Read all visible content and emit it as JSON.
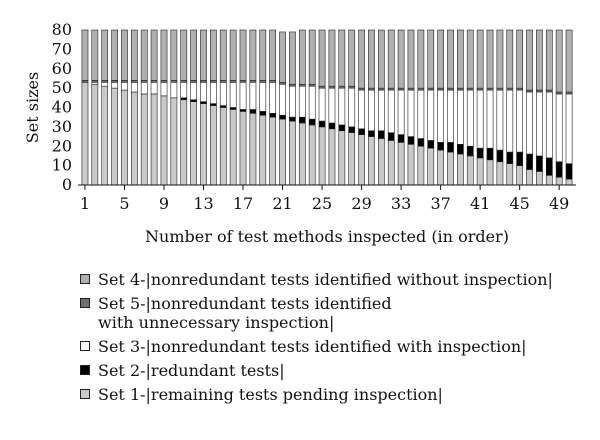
{
  "chart_data": {
    "type": "bar",
    "stacked": true,
    "xlabel": "Number of test methods inspected (in order)",
    "ylabel": "Set sizes",
    "ylim": [
      0,
      80
    ],
    "yticks": [
      0,
      10,
      20,
      30,
      40,
      50,
      60,
      70,
      80
    ],
    "xtick_labels": [
      "1",
      "5",
      "9",
      "13",
      "17",
      "21",
      "25",
      "29",
      "33",
      "37",
      "41",
      "45",
      "49"
    ],
    "categories": [
      1,
      2,
      3,
      4,
      5,
      6,
      7,
      8,
      9,
      10,
      11,
      12,
      13,
      14,
      15,
      16,
      17,
      18,
      19,
      20,
      21,
      22,
      23,
      24,
      25,
      26,
      27,
      28,
      29,
      30,
      31,
      32,
      33,
      34,
      35,
      36,
      37,
      38,
      39,
      40,
      41,
      42,
      43,
      44,
      45,
      46,
      47,
      48,
      49,
      50
    ],
    "series": [
      {
        "name": "Set 1-|remaining tests pending inspection|",
        "key": "set1",
        "values": [
          53,
          52,
          51,
          50,
          49,
          48,
          47,
          47,
          46,
          45,
          44,
          43,
          42,
          41,
          40,
          39,
          38,
          37,
          36,
          35,
          34,
          33,
          32,
          31,
          30,
          29,
          28,
          27,
          26,
          25,
          24,
          23,
          22,
          21,
          20,
          19,
          18,
          17,
          16,
          15,
          14,
          13,
          12,
          11,
          10,
          8,
          7,
          5,
          4,
          3
        ]
      },
      {
        "name": "Set 2-|redundant tests|",
        "key": "set2",
        "values": [
          0,
          0,
          0,
          0,
          0,
          0,
          0,
          0,
          0,
          0,
          1,
          1,
          1,
          1,
          1,
          1,
          1,
          2,
          2,
          2,
          2,
          2,
          3,
          3,
          3,
          3,
          3,
          3,
          3,
          3,
          4,
          4,
          4,
          4,
          4,
          4,
          4,
          5,
          5,
          5,
          5,
          6,
          6,
          6,
          7,
          8,
          8,
          9,
          8,
          8
        ]
      },
      {
        "name": "Set 3-|nonredundant tests identified with inspection|",
        "key": "set3",
        "values": [
          0,
          1,
          2,
          3,
          4,
          5,
          6,
          6,
          7,
          8,
          8,
          9,
          10,
          11,
          12,
          13,
          14,
          14,
          15,
          16,
          16,
          16,
          16,
          17,
          17,
          18,
          19,
          20,
          20,
          21,
          21,
          22,
          23,
          24,
          25,
          26,
          27,
          27,
          28,
          29,
          30,
          30,
          31,
          32,
          32,
          32,
          33,
          34,
          35,
          36
        ]
      },
      {
        "name": "Set 5-|nonredundant tests identified\nwith unnecessary inspection|",
        "key": "set5",
        "values": [
          1,
          1,
          1,
          1,
          1,
          1,
          1,
          1,
          1,
          1,
          1,
          1,
          1,
          1,
          1,
          1,
          1,
          1,
          1,
          1,
          1,
          1,
          1,
          1,
          1,
          1,
          1,
          1,
          1,
          1,
          1,
          1,
          1,
          1,
          1,
          1,
          1,
          1,
          1,
          1,
          1,
          1,
          1,
          1,
          1,
          1,
          1,
          1,
          1,
          1
        ]
      },
      {
        "name": "Set 4-|nonredundant tests identified without inspection|",
        "key": "set4",
        "values": [
          26,
          26,
          26,
          26,
          26,
          26,
          26,
          26,
          26,
          26,
          26,
          26,
          26,
          26,
          26,
          26,
          26,
          26,
          26,
          26,
          26,
          27,
          28,
          28,
          29,
          29,
          29,
          29,
          30,
          30,
          30,
          30,
          30,
          30,
          30,
          30,
          30,
          30,
          30,
          30,
          30,
          30,
          30,
          30,
          30,
          31,
          31,
          31,
          32,
          32
        ]
      }
    ],
    "colors": {
      "set1": "#c9c9c9",
      "set2": "#000000",
      "set3": "#ffffff",
      "set4": "#b0b0b0",
      "set5": "#707070"
    },
    "legend_order": [
      "set4",
      "set5",
      "set3",
      "set2",
      "set1"
    ],
    "legend_placement": "below"
  }
}
